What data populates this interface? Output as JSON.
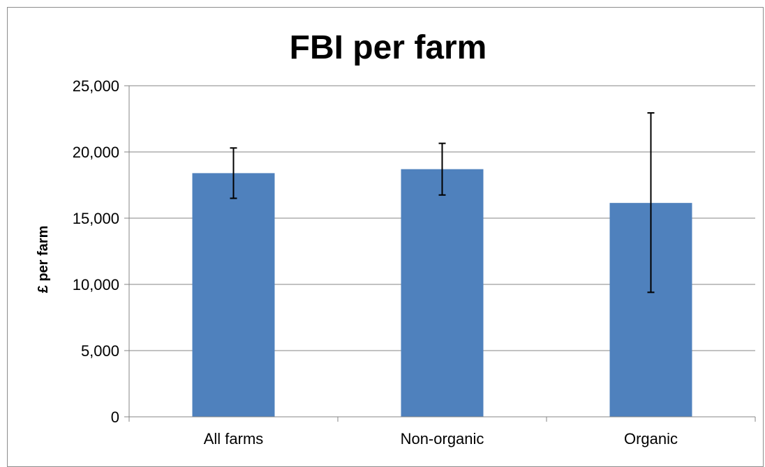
{
  "chart_data": {
    "type": "bar",
    "title": "FBI per farm",
    "xlabel": "",
    "ylabel": "£ per farm",
    "categories": [
      "All farms",
      "Non-organic",
      "Organic"
    ],
    "values": [
      18400,
      18700,
      16150
    ],
    "error_low": [
      16500,
      16750,
      9400
    ],
    "error_high": [
      20300,
      20650,
      22950
    ],
    "ylim": [
      0,
      25000
    ],
    "yticks": [
      0,
      5000,
      10000,
      15000,
      20000,
      25000
    ],
    "ytick_labels": [
      "0",
      "5,000",
      "10,000",
      "15,000",
      "20,000",
      "25,000"
    ],
    "grid": true,
    "legend": "none",
    "bar_color": "#4f81bd",
    "gridline_color": "#868686"
  }
}
